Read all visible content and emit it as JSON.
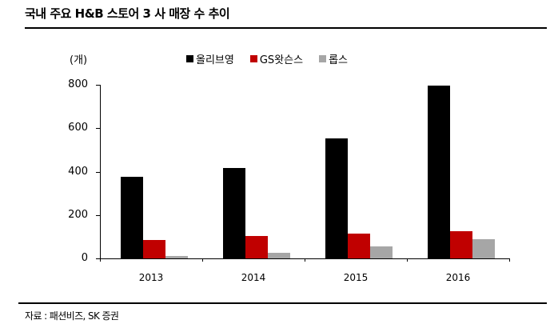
{
  "title": "국내 주요 H&B 스토어 3 사 매장 수 추이",
  "source": "자료 : 패션비즈, SK 증권",
  "chart_data": {
    "type": "bar",
    "title": "국내 주요 H&B 스토어 3 사 매장 수 추이",
    "xlabel": "",
    "ylabel": "(개)",
    "ylim": [
      0,
      800
    ],
    "yticks": [
      0,
      200,
      400,
      600,
      800
    ],
    "grid": false,
    "legend_position": "top",
    "categories": [
      "2013",
      "2014",
      "2015",
      "2016"
    ],
    "series": [
      {
        "name": "올리브영",
        "color": "#000000",
        "values": [
          375,
          415,
          552,
          795
        ]
      },
      {
        "name": "GS왓슨스",
        "color": "#c00000",
        "values": [
          86,
          104,
          115,
          126
        ]
      },
      {
        "name": "롭스",
        "color": "#a6a6a6",
        "values": [
          12,
          27,
          55,
          88
        ]
      }
    ]
  }
}
